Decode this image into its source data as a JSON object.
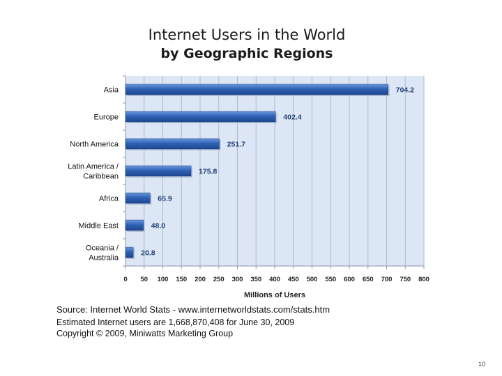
{
  "chart_data": {
    "type": "bar",
    "orientation": "horizontal",
    "title": "Internet Users in the World",
    "subtitle": "by Geographic Regions",
    "categories": [
      [
        "Asia"
      ],
      [
        "Europe"
      ],
      [
        "North America"
      ],
      [
        "Latin America /",
        "Caribbean"
      ],
      [
        "Africa"
      ],
      [
        "Middle East"
      ],
      [
        "Oceania /",
        "Australia"
      ]
    ],
    "values": [
      704.2,
      402.4,
      251.7,
      175.8,
      65.9,
      48.0,
      20.8
    ],
    "data_labels": [
      "704.2",
      "402.4",
      "251.7",
      "175.8",
      "65.9",
      "48.0",
      "20.8"
    ],
    "xlabel": "Millions of Users",
    "ylabel": "",
    "xlim": [
      0,
      800
    ],
    "xticks": [
      0,
      50,
      100,
      150,
      200,
      250,
      300,
      350,
      400,
      450,
      500,
      550,
      600,
      650,
      700,
      750,
      800
    ],
    "grid": true,
    "bar_color": "#2f62b6",
    "plot_bg": "#dce6f4",
    "grid_color": "#a9b9d3",
    "legend": "none"
  },
  "source": {
    "line1": "Source: Internet World Stats - www.internetworldstats.com/stats.htm",
    "line2": "Estimated Internet users are 1,668,870,408 for June 30, 2009",
    "line3": "Copyright © 2009, Miniwatts Marketing Group"
  },
  "page_number": "10"
}
